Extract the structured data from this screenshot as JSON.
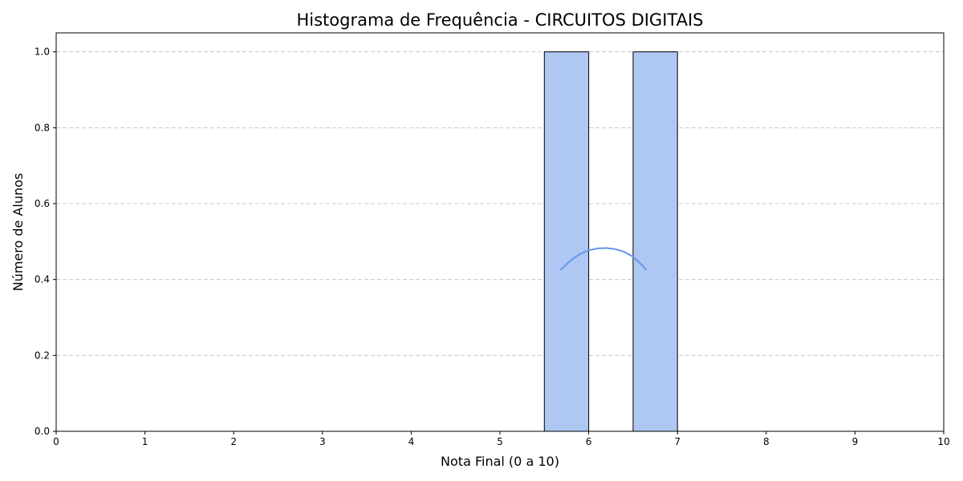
{
  "chart_data": {
    "type": "bar",
    "title": "Histograma de Frequência - CIRCUITOS DIGITAIS",
    "xlabel": "Nota Final (0 a 10)",
    "ylabel": "Número de Alunos",
    "xlim": [
      0,
      10
    ],
    "ylim": [
      0,
      1.05
    ],
    "x_ticks": [
      0,
      1,
      2,
      3,
      4,
      5,
      6,
      7,
      8,
      9,
      10
    ],
    "y_ticks": [
      0.0,
      0.2,
      0.4,
      0.6,
      0.8,
      1.0
    ],
    "y_tick_labels": [
      "0.0",
      "0.2",
      "0.4",
      "0.6",
      "0.8",
      "1.0"
    ],
    "bins": [
      {
        "start": 5.5,
        "end": 6.0,
        "count": 1
      },
      {
        "start": 6.0,
        "end": 6.5,
        "count": 0
      },
      {
        "start": 6.5,
        "end": 7.0,
        "count": 1
      }
    ],
    "kde_curve": {
      "x": [
        5.68,
        5.8,
        5.9,
        6.0,
        6.1,
        6.2,
        6.3,
        6.4,
        6.5,
        6.6,
        6.65
      ],
      "y": [
        0.425,
        0.451,
        0.467,
        0.477,
        0.482,
        0.483,
        0.48,
        0.473,
        0.46,
        0.438,
        0.425
      ]
    },
    "grid": {
      "y": true,
      "x": false,
      "style": "dashed"
    },
    "colors": {
      "bar_fill": "#aec7f3",
      "bar_edge": "#000000",
      "kde_line": "#6495ed",
      "grid": "#c8c8c8"
    }
  }
}
